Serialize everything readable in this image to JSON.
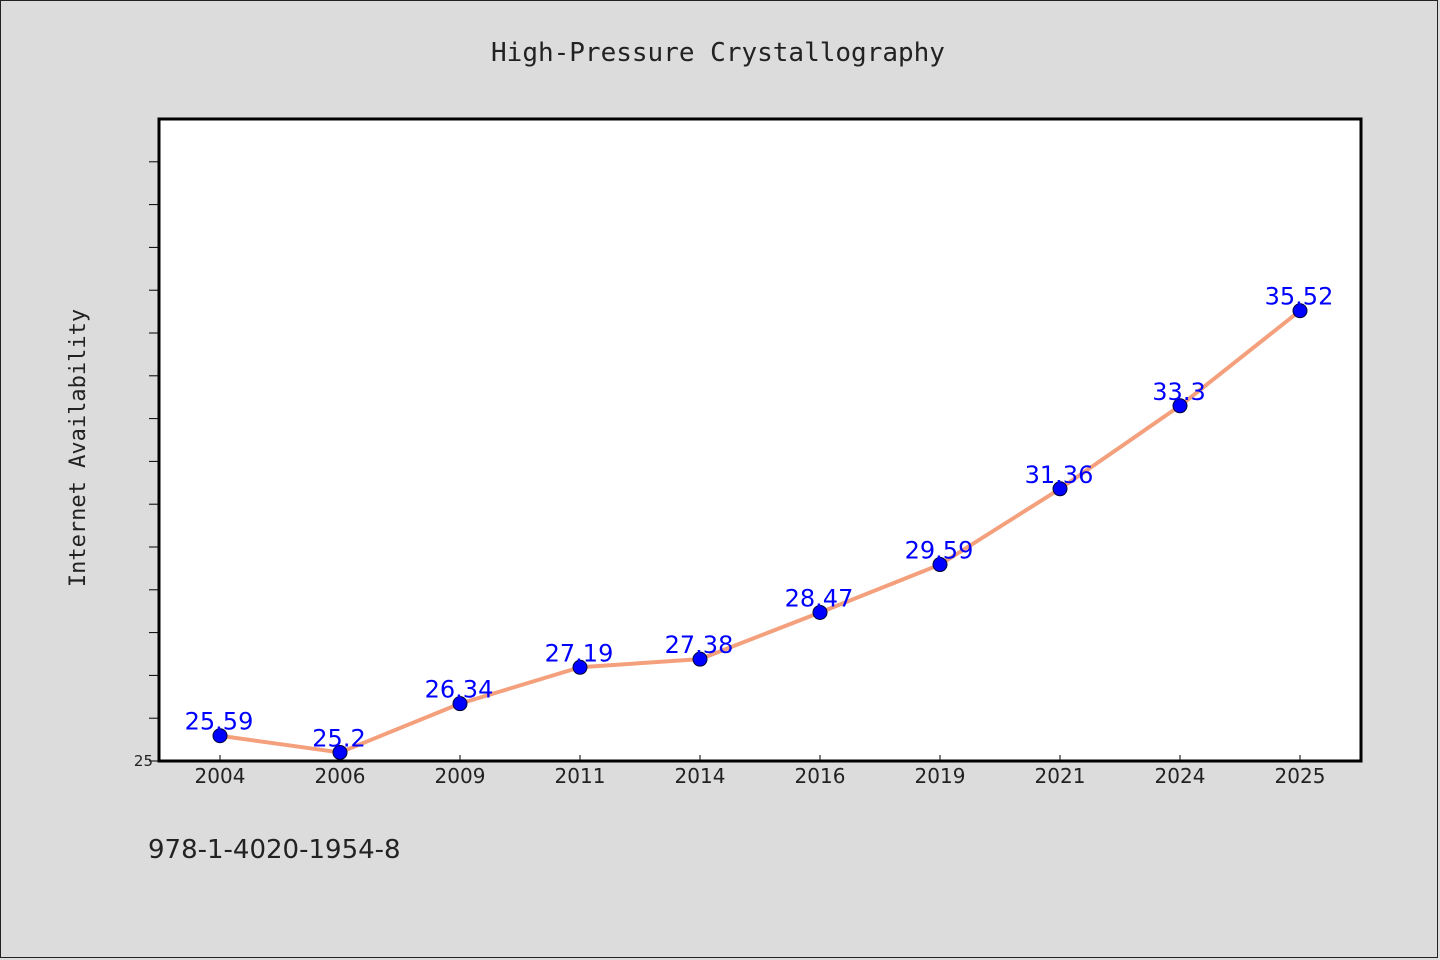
{
  "chart_data": {
    "type": "line",
    "title": "High-Pressure Crystallography",
    "ylabel": "Internet Availability",
    "xlabel": "",
    "categories": [
      "2004",
      "2006",
      "2009",
      "2011",
      "2014",
      "2016",
      "2019",
      "2021",
      "2024",
      "2025"
    ],
    "series": [
      {
        "values": [
          25.59,
          25.2,
          26.34,
          27.19,
          27.38,
          28.47,
          29.59,
          31.36,
          33.3,
          35.52
        ],
        "data_labels": [
          "25.59",
          "25.2",
          "26.34",
          "27.19",
          "27.38",
          "28.47",
          "29.59",
          "31.36",
          "33.3",
          "35.52"
        ],
        "color": "#f4a07c",
        "marker_color": "#0000ff"
      }
    ],
    "ylim": [
      25,
      40
    ],
    "ytick_labels": [
      "25"
    ],
    "grid": false,
    "legend": "none"
  },
  "footer": {
    "code": "978-1-4020-1954-8"
  },
  "colors": {
    "background": "#dcdcdc",
    "plot_background": "#ffffff",
    "data_label": "#0000ff"
  }
}
